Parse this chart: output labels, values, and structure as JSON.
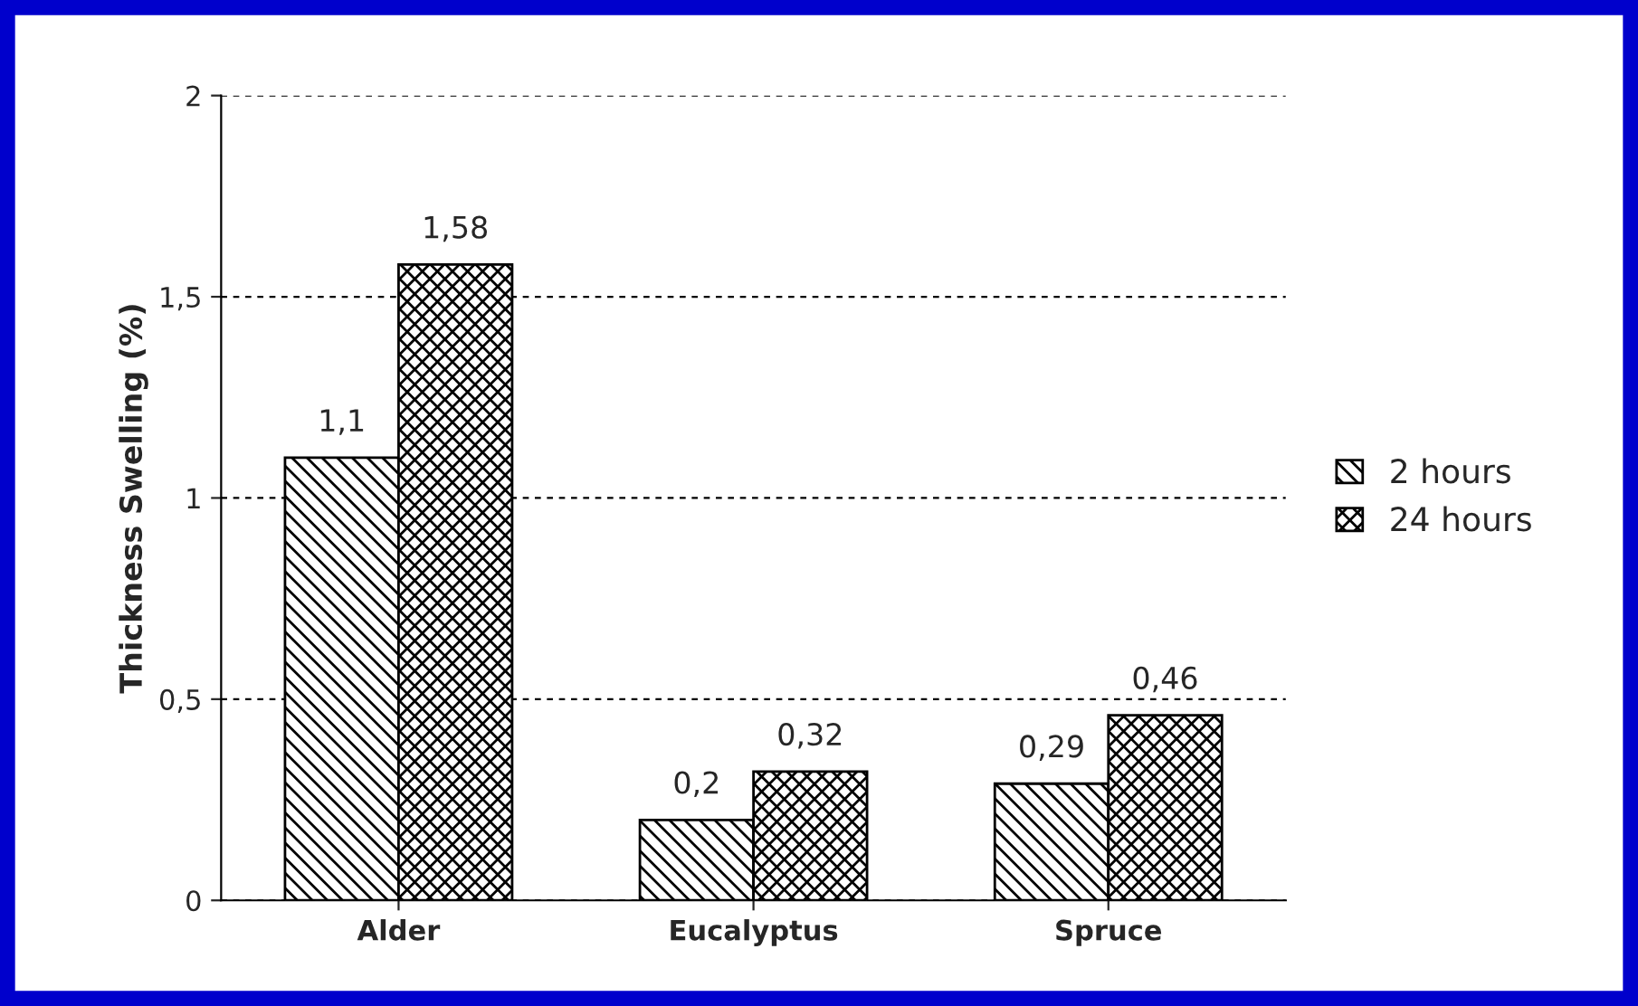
{
  "chart_data": {
    "type": "bar",
    "ylabel": "Thickness Swelling (%)",
    "categories": [
      "Alder",
      "Eucalyptus",
      "Spruce"
    ],
    "series": [
      {
        "name": "2 hours",
        "color": "#000000",
        "values": [
          1.1,
          0.2,
          0.29
        ],
        "value_labels": [
          "1,1",
          "0,2",
          "0,29"
        ]
      },
      {
        "name": "24 hours",
        "color": "#000000",
        "values": [
          1.58,
          0.32,
          0.46
        ],
        "value_labels": [
          "1,58",
          "0,32",
          "0,46"
        ]
      }
    ],
    "ylim": [
      0,
      2
    ],
    "yticks": [
      0,
      {
        "value": 0.5,
        "label": "0,5"
      },
      1,
      {
        "value": 1.5,
        "label": "1,5"
      },
      2
    ],
    "grid": "y",
    "legend": "right"
  }
}
